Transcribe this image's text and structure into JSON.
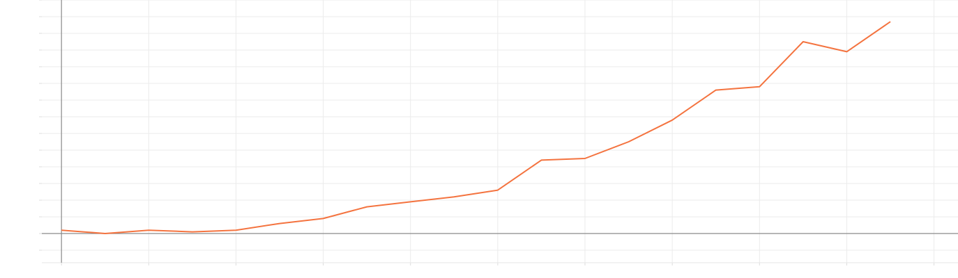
{
  "chart_data": {
    "type": "line",
    "x": [
      0,
      1,
      2,
      3,
      4,
      5,
      6,
      7,
      8,
      9,
      10,
      11,
      12,
      13,
      14,
      15,
      16,
      17,
      18,
      19
    ],
    "values": [
      0.2,
      0,
      0.2,
      0.1,
      0.2,
      0.6,
      0.9,
      1.6,
      1.9,
      2.2,
      2.6,
      4.4,
      4.5,
      5.5,
      6.8,
      8.6,
      8.8,
      11.5,
      10.9,
      12.7
    ],
    "color": "#f4733f",
    "xlim": [
      -0.45,
      20.55
    ],
    "xticks": [
      0,
      2,
      4,
      6,
      8,
      10,
      12,
      14,
      16,
      18,
      20
    ],
    "ylim": [
      -1.75,
      14
    ],
    "yticks": [
      -1,
      0,
      1,
      2,
      3,
      4,
      5,
      6,
      7,
      8,
      9,
      10,
      11,
      12,
      13,
      14
    ],
    "grid": true
  }
}
